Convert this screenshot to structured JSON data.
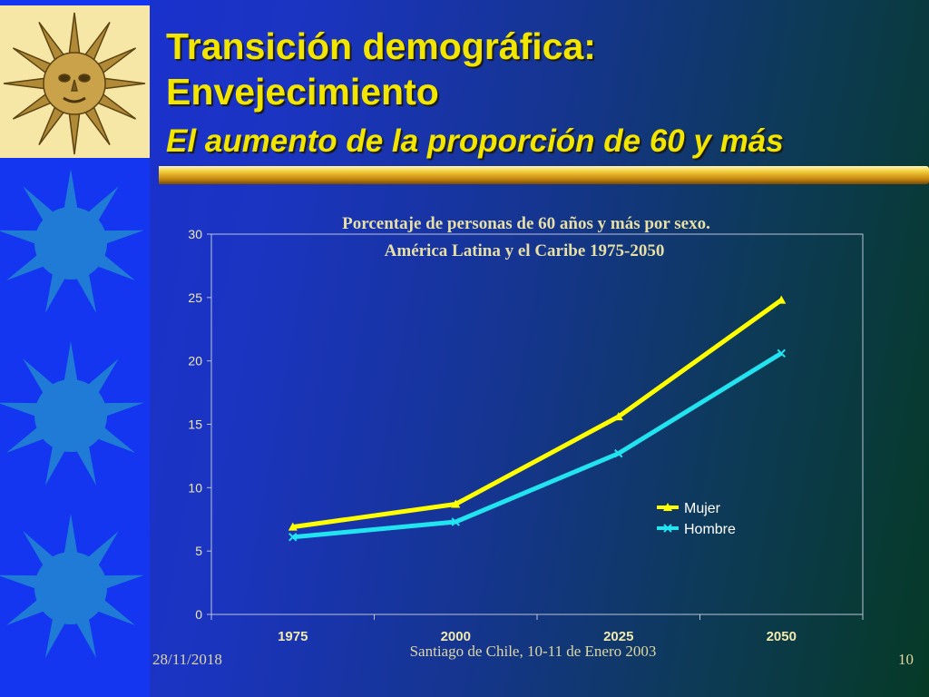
{
  "slide": {
    "title_line1": "Transición demográfica:",
    "title_line2": "Envejecimiento",
    "subtitle": "El aumento de la proporción de 60 y más"
  },
  "footer": {
    "date": "28/11/2018",
    "center": "Santiago de Chile, 10-11 de Enero 2003",
    "page": "10"
  },
  "colors": {
    "mujer": "#ffff00",
    "hombre": "#22e4f0",
    "title": "#f2e600"
  },
  "chart_data": {
    "type": "line",
    "title_line1": "Porcentaje de personas de 60 años y más por sexo.",
    "title_line2": "América Latina y el Caribe 1975-2050",
    "categories": [
      "1975",
      "2000",
      "2025",
      "2050"
    ],
    "series": [
      {
        "name": "Mujer",
        "marker": "triangle",
        "values": [
          6.9,
          8.7,
          15.6,
          24.8
        ]
      },
      {
        "name": "Hombre",
        "marker": "x",
        "values": [
          6.1,
          7.3,
          12.7,
          20.6
        ]
      }
    ],
    "ylim": [
      0,
      30
    ],
    "yticks": [
      "0",
      "5",
      "10",
      "15",
      "20",
      "25",
      "30"
    ],
    "grid": false,
    "legend_position": "right-middle",
    "xlabel": "",
    "ylabel": ""
  }
}
